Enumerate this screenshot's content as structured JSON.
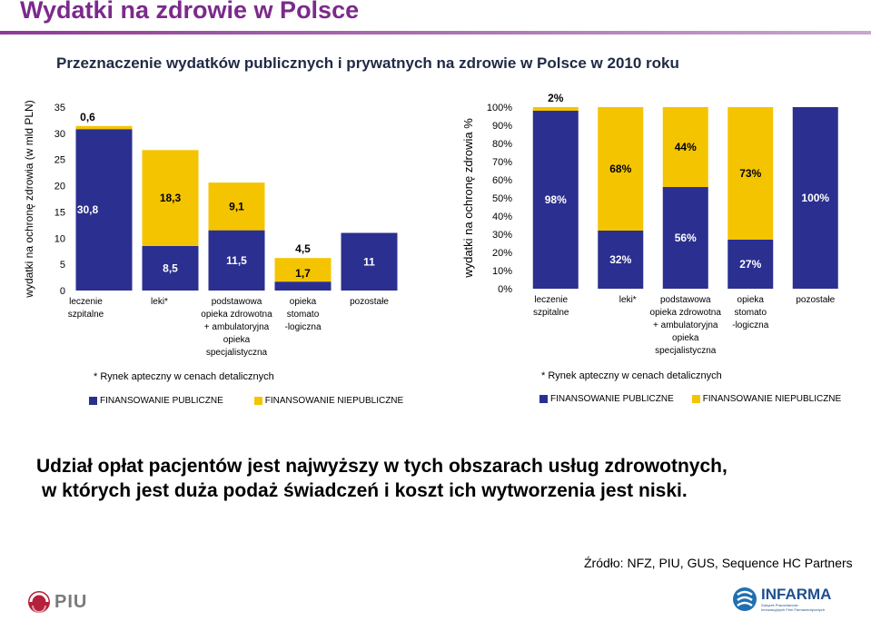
{
  "page": {
    "title": "Wydatki na zdrowie w Polsce",
    "subtitle": "Przeznaczenie wydatków publicznych i prywatnych na zdrowie w Polsce w 2010 roku",
    "main_text_line1": "Udział opłat pacjentów jest najwyższy w tych obszarach usług zdrowotnych,",
    "main_text_line2": "w których jest duża podaż świadczeń i koszt ich wytworzenia jest niski.",
    "source": "Źródło: NFZ, PIU, GUS, Sequence HC Partners",
    "logo_left": "PIU",
    "logo_right": "INFARMA",
    "logo_right_sub1": "Związek Pracodawców",
    "logo_right_sub2": "Innowacyjnych Firm Farmaceutycznych"
  },
  "colors": {
    "public": "#2b2f8f",
    "private": "#f5c400",
    "title": "#7b2a8b"
  },
  "chart_data": [
    {
      "type": "bar",
      "stacked": true,
      "ylabel": "wydatki na ochronę zdrowia (w mld PLN)",
      "ylim": [
        0,
        35
      ],
      "yticks": [
        "0",
        "5",
        "10",
        "15",
        "20",
        "25",
        "30",
        "35"
      ],
      "categories": [
        [
          "leczenie",
          "szpitalne"
        ],
        [
          "leki*"
        ],
        [
          "podstawowa",
          "opieka zdrowotna",
          "+ ambulatoryjna",
          "opieka",
          "specjalistyczna"
        ],
        [
          "opieka",
          "stomato",
          "-logiczna"
        ],
        [
          "pozostałe"
        ]
      ],
      "series": [
        {
          "name": "FINANSOWANIE PUBLICZNE",
          "values": [
            30.8,
            8.5,
            11.5,
            1.7,
            11
          ]
        },
        {
          "name": "FINANSOWANIE NIEPUBLICZNE",
          "values": [
            0.6,
            18.3,
            9.1,
            4.5,
            0
          ]
        }
      ],
      "labels_public": [
        "30,8",
        "8,5",
        "11,5",
        "1,7",
        "11"
      ],
      "labels_private": [
        "0,6",
        "18,3",
        "9,1",
        "4,5",
        ""
      ],
      "footnote": "* Rynek apteczny w cenach detalicznych",
      "legend": [
        "FINANSOWANIE PUBLICZNE",
        "FINANSOWANIE NIEPUBLICZNE"
      ]
    },
    {
      "type": "bar",
      "stacked": true,
      "percent": true,
      "ylabel": "wydatki na ochronę zdrowia %",
      "ylim": [
        0,
        100
      ],
      "yticks": [
        "0%",
        "10%",
        "20%",
        "30%",
        "40%",
        "50%",
        "60%",
        "70%",
        "80%",
        "90%",
        "100%"
      ],
      "categories": [
        [
          "leczenie",
          "szpitalne"
        ],
        [
          "leki*"
        ],
        [
          "podstawowa",
          "opieka zdrowotna",
          "+ ambulatoryjna",
          "opieka",
          "specjalistyczna"
        ],
        [
          "opieka",
          "stomato",
          "-logiczna"
        ],
        [
          "pozostałe"
        ]
      ],
      "series": [
        {
          "name": "FINANSOWANIE PUBLICZNE",
          "values": [
            98,
            32,
            56,
            27,
            100
          ]
        },
        {
          "name": "FINANSOWANIE NIEPUBLICZNE",
          "values": [
            2,
            68,
            44,
            73,
            0
          ]
        }
      ],
      "labels_public": [
        "98%",
        "32%",
        "56%",
        "27%",
        "100%"
      ],
      "labels_private": [
        "2%",
        "68%",
        "44%",
        "73%",
        ""
      ],
      "footnote": "* Rynek apteczny w cenach detalicznych",
      "legend": [
        "FINANSOWANIE PUBLICZNE",
        "FINANSOWANIE NIEPUBLICZNE"
      ]
    }
  ]
}
